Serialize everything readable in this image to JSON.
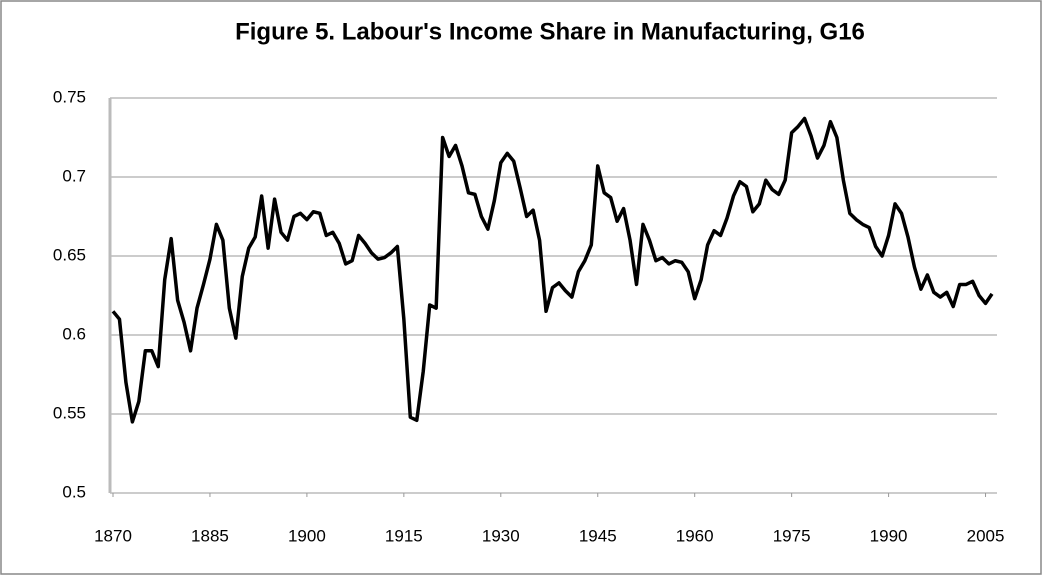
{
  "chart_data": {
    "type": "line",
    "title": "Figure 5. Labour's Income Share in Manufacturing, G16",
    "x": [
      1870,
      1871,
      1872,
      1873,
      1874,
      1875,
      1876,
      1877,
      1878,
      1879,
      1880,
      1881,
      1882,
      1883,
      1884,
      1885,
      1886,
      1887,
      1888,
      1889,
      1890,
      1891,
      1892,
      1893,
      1894,
      1895,
      1896,
      1897,
      1898,
      1899,
      1900,
      1901,
      1902,
      1903,
      1904,
      1905,
      1906,
      1907,
      1908,
      1909,
      1910,
      1911,
      1912,
      1913,
      1914,
      1915,
      1916,
      1917,
      1918,
      1919,
      1920,
      1921,
      1922,
      1923,
      1924,
      1925,
      1926,
      1927,
      1928,
      1929,
      1930,
      1931,
      1932,
      1933,
      1934,
      1935,
      1936,
      1937,
      1938,
      1939,
      1940,
      1941,
      1942,
      1943,
      1944,
      1945,
      1946,
      1947,
      1948,
      1949,
      1950,
      1951,
      1952,
      1953,
      1954,
      1955,
      1956,
      1957,
      1958,
      1959,
      1960,
      1961,
      1962,
      1963,
      1964,
      1965,
      1966,
      1967,
      1968,
      1969,
      1970,
      1971,
      1972,
      1973,
      1974,
      1975,
      1976,
      1977,
      1978,
      1979,
      1980,
      1981,
      1982,
      1983,
      1984,
      1985,
      1986,
      1987,
      1988,
      1989,
      1990,
      1991,
      1992,
      1993,
      1994,
      1995,
      1996,
      1997,
      1998,
      1999,
      2000,
      2001,
      2002,
      2003,
      2004,
      2005,
      2006
    ],
    "values": [
      0.615,
      0.61,
      0.57,
      0.545,
      0.558,
      0.59,
      0.59,
      0.58,
      0.635,
      0.661,
      0.622,
      0.608,
      0.59,
      0.617,
      0.632,
      0.648,
      0.67,
      0.66,
      0.617,
      0.598,
      0.637,
      0.655,
      0.662,
      0.688,
      0.655,
      0.686,
      0.665,
      0.66,
      0.675,
      0.677,
      0.673,
      0.678,
      0.677,
      0.663,
      0.665,
      0.658,
      0.645,
      0.647,
      0.663,
      0.658,
      0.652,
      0.648,
      0.649,
      0.652,
      0.656,
      0.61,
      0.548,
      0.546,
      0.577,
      0.619,
      0.617,
      0.725,
      0.713,
      0.72,
      0.707,
      0.69,
      0.689,
      0.675,
      0.667,
      0.685,
      0.709,
      0.715,
      0.71,
      0.693,
      0.675,
      0.679,
      0.66,
      0.615,
      0.63,
      0.633,
      0.628,
      0.624,
      0.64,
      0.647,
      0.657,
      0.707,
      0.69,
      0.687,
      0.672,
      0.68,
      0.66,
      0.632,
      0.67,
      0.66,
      0.647,
      0.649,
      0.645,
      0.647,
      0.646,
      0.64,
      0.623,
      0.635,
      0.657,
      0.666,
      0.663,
      0.674,
      0.688,
      0.697,
      0.694,
      0.678,
      0.683,
      0.698,
      0.692,
      0.689,
      0.698,
      0.728,
      0.732,
      0.737,
      0.726,
      0.712,
      0.72,
      0.735,
      0.725,
      0.698,
      0.677,
      0.673,
      0.67,
      0.668,
      0.656,
      0.65,
      0.663,
      0.683,
      0.677,
      0.662,
      0.643,
      0.629,
      0.638,
      0.627,
      0.624,
      0.627,
      0.618,
      0.632,
      0.632,
      0.634,
      0.625,
      0.62,
      0.626
    ],
    "color": "#000000",
    "xlim": [
      1870,
      2006
    ],
    "xticks": [
      1870,
      1885,
      1900,
      1915,
      1930,
      1945,
      1960,
      1975,
      1990,
      2005
    ],
    "ylim": [
      0.5,
      0.75
    ],
    "yticks": [
      0.5,
      0.55,
      0.6,
      0.65,
      0.7,
      0.75
    ],
    "grid": true
  }
}
